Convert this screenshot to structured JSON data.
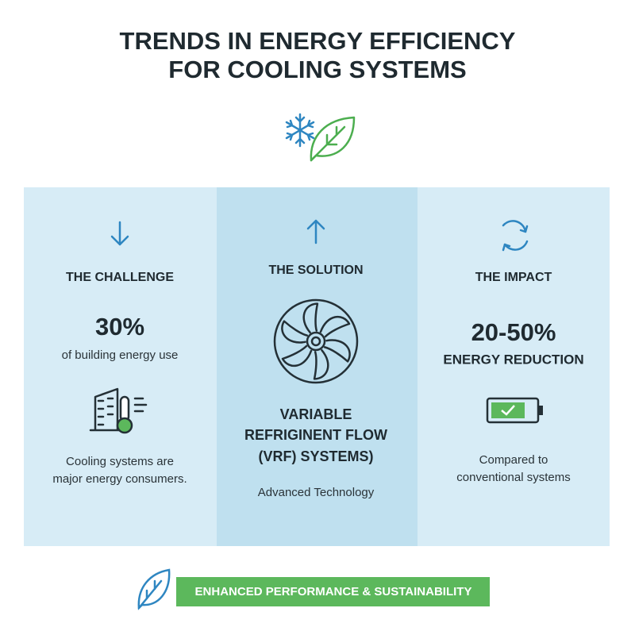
{
  "header": {
    "title": [
      "TRENDS IN ENERGY EFFICIENCY",
      "FOR COOLING SYSTEMS"
    ]
  },
  "panels": [
    {
      "heading": "THE CHALLENGE",
      "stat": "30%",
      "stat_label": "of building energy use",
      "description": [
        "Cooling systems are",
        "major energy consumers."
      ]
    },
    {
      "heading": "THE SOLUTION",
      "name": [
        "VARIABLE",
        "REFRIGINENT FLOW",
        "(VRF) SYSTEMS)"
      ],
      "description": [
        "Advanced Technology"
      ]
    },
    {
      "heading": "THE IMPACT",
      "stat": "20-50%",
      "stat_label": "ENERGY REDUCTION",
      "description": [
        "Compared to",
        "conventional systems"
      ]
    }
  ],
  "footer": {
    "banner": "ENHANCED PERFORMANCE & SUSTAINABILITY"
  }
}
